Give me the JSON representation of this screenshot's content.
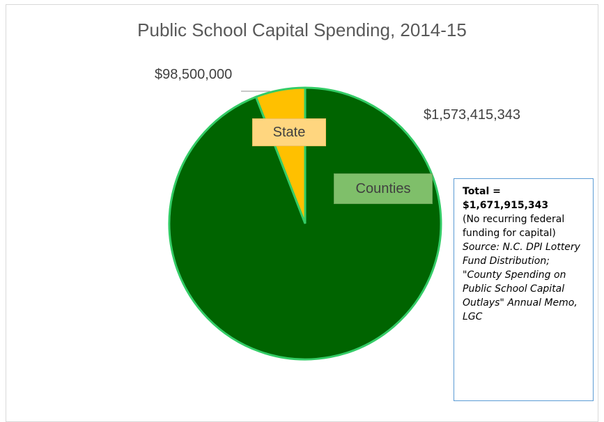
{
  "chart_data": {
    "type": "pie",
    "title": "Public School Capital Spending, 2014-15",
    "slices": [
      {
        "label": "Counties",
        "value": 1573415343,
        "value_label": "$1,573,415,343",
        "color": "#006400"
      },
      {
        "label": "State",
        "value": 98500000,
        "value_label": "$98,500,000",
        "color": "#ffc000"
      }
    ],
    "border_color": "#33cc66",
    "legend": "none"
  },
  "note": {
    "total_line1": "Total =",
    "total_line2": "$1,671,915,343",
    "federal": "(No recurring federal funding for capital)",
    "source": "Source: N.C. DPI Lottery Fund Distribution; \"County Spending on Public School Capital Outlays\" Annual Memo, LGC"
  }
}
